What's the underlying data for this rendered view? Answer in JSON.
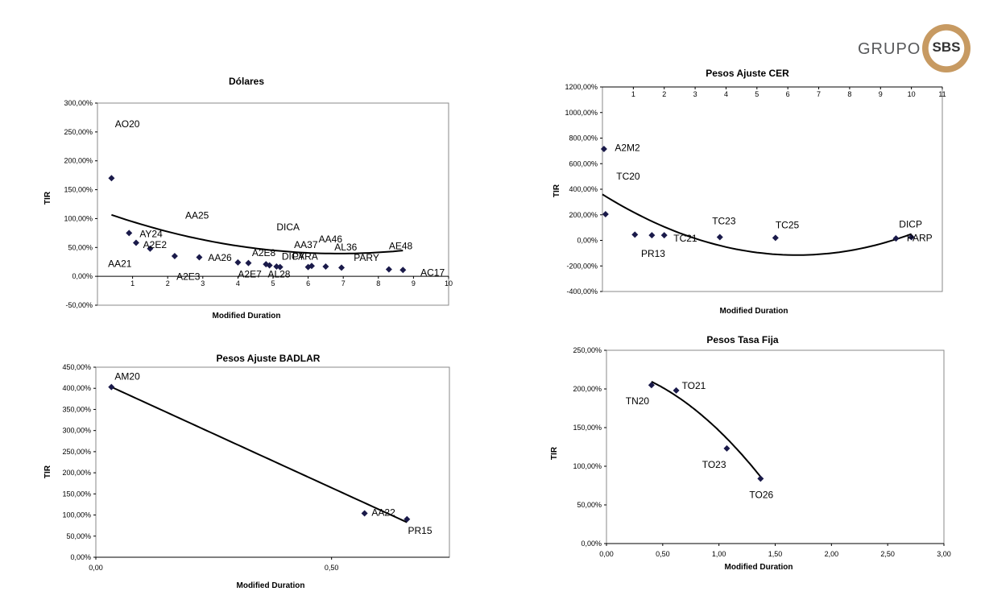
{
  "logo": {
    "grupo": "GRUPO",
    "sbs": "SBS"
  },
  "chart_data": [
    {
      "type": "scatter",
      "title": "Dólares",
      "xlabel": "Modified Duration",
      "ylabel": "TIR",
      "xlim": [
        0,
        10
      ],
      "ylim": [
        -50,
        300
      ],
      "xticks": [
        1,
        2,
        3,
        4,
        5,
        6,
        7,
        8,
        9,
        10
      ],
      "yticks": [
        -50,
        0,
        50,
        100,
        150,
        200,
        250,
        300
      ],
      "ytick_labels": [
        "-50,00%",
        "0,00%",
        "50,00%",
        "100,00%",
        "150,00%",
        "200,00%",
        "250,00%",
        "300,00%"
      ],
      "x_axis_at": 0,
      "points": [
        {
          "x": 0.4,
          "y": 170
        },
        {
          "x": 0.9,
          "y": 75
        },
        {
          "x": 1.1,
          "y": 58
        },
        {
          "x": 1.5,
          "y": 48
        },
        {
          "x": 2.2,
          "y": 35
        },
        {
          "x": 2.9,
          "y": 33
        },
        {
          "x": 4.0,
          "y": 24
        },
        {
          "x": 4.3,
          "y": 23
        },
        {
          "x": 4.8,
          "y": 21
        },
        {
          "x": 4.9,
          "y": 19
        },
        {
          "x": 5.1,
          "y": 17
        },
        {
          "x": 5.2,
          "y": 16
        },
        {
          "x": 6.0,
          "y": 16
        },
        {
          "x": 6.1,
          "y": 18
        },
        {
          "x": 6.5,
          "y": 17
        },
        {
          "x": 6.95,
          "y": 15
        },
        {
          "x": 8.3,
          "y": 12
        },
        {
          "x": 8.7,
          "y": 11
        }
      ],
      "labels": [
        {
          "text": "AO20",
          "x": 0.5,
          "y": 258
        },
        {
          "text": "AY24",
          "x": 1.2,
          "y": 68
        },
        {
          "text": "A2E2",
          "x": 1.3,
          "y": 49
        },
        {
          "text": "AA21",
          "x": 0.3,
          "y": 16
        },
        {
          "text": "A2E3",
          "x": 2.25,
          "y": -6
        },
        {
          "text": "AA25",
          "x": 2.5,
          "y": 100
        },
        {
          "text": "AA26",
          "x": 3.15,
          "y": 27
        },
        {
          "text": "A2E8",
          "x": 4.4,
          "y": 35
        },
        {
          "text": "A2E7",
          "x": 4.0,
          "y": -2
        },
        {
          "text": "AL28",
          "x": 4.85,
          "y": -2
        },
        {
          "text": "DICA",
          "x": 5.1,
          "y": 80
        },
        {
          "text": "DICY",
          "x": 5.25,
          "y": 29
        },
        {
          "text": "PARA",
          "x": 5.55,
          "y": 29
        },
        {
          "text": "AA37",
          "x": 5.6,
          "y": 49
        },
        {
          "text": "AA46",
          "x": 6.3,
          "y": 59
        },
        {
          "text": "AL36",
          "x": 6.75,
          "y": 45
        },
        {
          "text": "PARY",
          "x": 7.3,
          "y": 27
        },
        {
          "text": "AE48",
          "x": 8.3,
          "y": 47
        },
        {
          "text": "AC17",
          "x": 9.2,
          "y": 1
        }
      ],
      "trend": {
        "type": "poly2",
        "a": 1.6,
        "b": -22.0,
        "c": 115,
        "from": 0.4,
        "to": 8.7
      }
    },
    {
      "type": "scatter",
      "title": "Pesos Ajuste CER",
      "xlabel": "Modified Duration",
      "ylabel": "TIR",
      "xlim": [
        0,
        11
      ],
      "ylim": [
        -400,
        1200
      ],
      "xticks": [
        1,
        2,
        3,
        4,
        5,
        6,
        7,
        8,
        9,
        10,
        11
      ],
      "yticks": [
        -400,
        -200,
        0,
        200,
        400,
        600,
        800,
        1000,
        1200
      ],
      "ytick_labels": [
        "-400,00%",
        "-200,00%",
        "0,00%",
        "200,00%",
        "400,00%",
        "600,00%",
        "800,00%",
        "1000,00%",
        "1200,00%"
      ],
      "x_axis_at": 1200,
      "points": [
        {
          "x": 0.05,
          "y": 715
        },
        {
          "x": 0.1,
          "y": 205
        },
        {
          "x": 1.05,
          "y": 45
        },
        {
          "x": 1.6,
          "y": 40
        },
        {
          "x": 2.0,
          "y": 40
        },
        {
          "x": 3.8,
          "y": 25
        },
        {
          "x": 5.6,
          "y": 20
        },
        {
          "x": 9.5,
          "y": 15
        },
        {
          "x": 10.0,
          "y": 25
        }
      ],
      "labels": [
        {
          "text": "A2M2",
          "x": 0.4,
          "y": 700
        },
        {
          "text": "TC20",
          "x": 0.45,
          "y": 475
        },
        {
          "text": "PR13",
          "x": 1.25,
          "y": -130
        },
        {
          "text": "TC21",
          "x": 2.3,
          "y": -10
        },
        {
          "text": "TC23",
          "x": 3.55,
          "y": 125
        },
        {
          "text": "TC25",
          "x": 5.6,
          "y": 95
        },
        {
          "text": "DICP",
          "x": 9.6,
          "y": 100
        },
        {
          "text": "PARP",
          "x": 9.85,
          "y": -5
        }
      ],
      "trend": {
        "type": "poly2",
        "a": 12.0,
        "b": -151.0,
        "c": 360,
        "from": 0.0,
        "to": 10.0
      }
    },
    {
      "type": "scatter",
      "title": "Pesos Ajuste BADLAR",
      "xlabel": "Modified Duration",
      "ylabel": "TIR",
      "xlim": [
        0,
        0.75
      ],
      "ylim": [
        0,
        450
      ],
      "xticks": [
        0,
        0.5
      ],
      "xtick_labels": [
        "0,00",
        "0,50"
      ],
      "yticks": [
        0,
        50,
        100,
        150,
        200,
        250,
        300,
        350,
        400,
        450
      ],
      "ytick_labels": [
        "0,00%",
        "50,00%",
        "100,00%",
        "150,00%",
        "200,00%",
        "250,00%",
        "300,00%",
        "350,00%",
        "400,00%",
        "450,00%"
      ],
      "x_axis_at": 0,
      "points": [
        {
          "x": 0.033,
          "y": 403
        },
        {
          "x": 0.57,
          "y": 104
        },
        {
          "x": 0.66,
          "y": 90
        }
      ],
      "labels": [
        {
          "text": "AM20",
          "x": 0.04,
          "y": 420
        },
        {
          "text": "AA22",
          "x": 0.585,
          "y": 98
        },
        {
          "text": "PR15",
          "x": 0.662,
          "y": 55
        }
      ],
      "trend": {
        "type": "linear",
        "m": -511,
        "c": 420,
        "from": 0.033,
        "to": 0.66
      }
    },
    {
      "type": "scatter",
      "title": "Pesos Tasa Fija",
      "xlabel": "Modified Duration",
      "ylabel": "TIR",
      "xlim": [
        0,
        3
      ],
      "ylim": [
        0,
        250
      ],
      "xticks": [
        0,
        0.5,
        1,
        1.5,
        2,
        2.5,
        3
      ],
      "xtick_labels": [
        "0,00",
        "0,50",
        "1,00",
        "1,50",
        "2,00",
        "2,50",
        "3,00"
      ],
      "yticks": [
        0,
        50,
        100,
        150,
        200,
        250
      ],
      "ytick_labels": [
        "0,00%",
        "50,00%",
        "100,00%",
        "150,00%",
        "200,00%",
        "250,00%"
      ],
      "x_axis_at": 0,
      "points": [
        {
          "x": 0.4,
          "y": 205
        },
        {
          "x": 0.62,
          "y": 198
        },
        {
          "x": 1.07,
          "y": 123
        },
        {
          "x": 1.37,
          "y": 84
        }
      ],
      "labels": [
        {
          "text": "TO21",
          "x": 0.67,
          "y": 200
        },
        {
          "text": "TN20",
          "x": 0.17,
          "y": 180
        },
        {
          "text": "TO23",
          "x": 0.85,
          "y": 98
        },
        {
          "text": "TO26",
          "x": 1.27,
          "y": 59
        }
      ],
      "trend": {
        "type": "poly2",
        "a": -57.0,
        "b": -26.0,
        "c": 229,
        "from": 0.4,
        "to": 1.37
      }
    }
  ]
}
